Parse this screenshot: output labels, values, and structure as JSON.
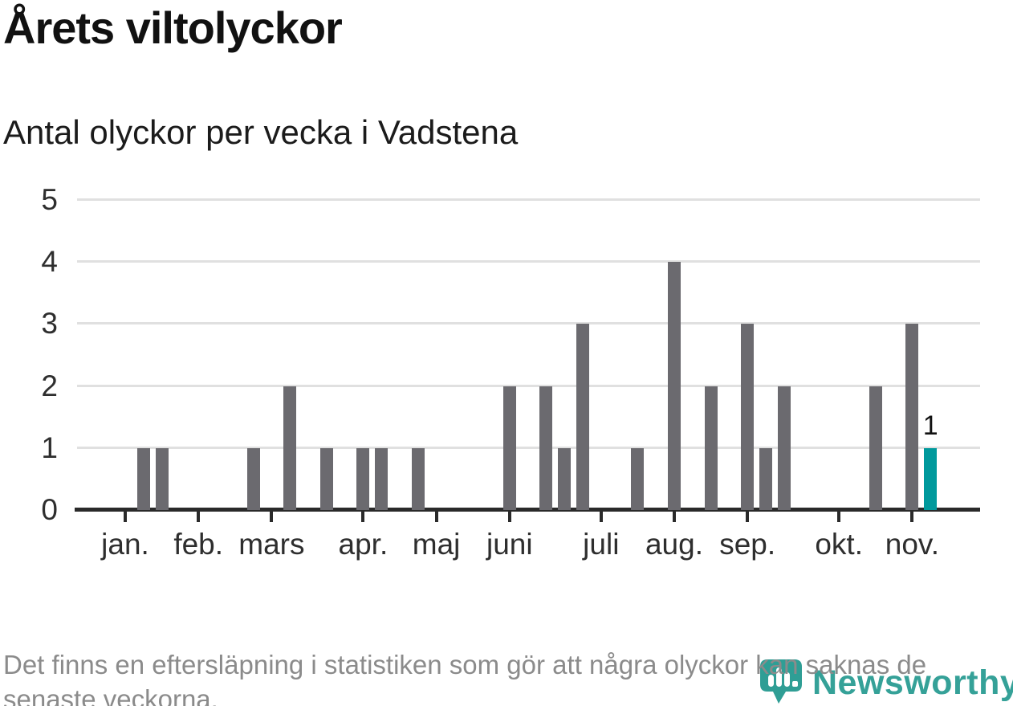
{
  "header": {
    "title": "Årets viltolyckor",
    "subtitle": "Antal olyckor per vecka i Vadstena"
  },
  "footer": {
    "lines": [
      "Det finns en eftersläpning i statistiken som gör att några olyckor kan saknas de",
      "senaste veckorna."
    ]
  },
  "logo": {
    "text": "Newsworthy"
  },
  "colors": {
    "bar": "#6b6a6f",
    "bar_highlight": "#00999c",
    "grid": "#e0e0e0",
    "axis": "#2a2a2a",
    "tick_label": "#2e2e2e",
    "footer_text": "#8b8b8b",
    "logo_teal": "#35a198",
    "title_text": "#111111"
  },
  "chart_data": {
    "type": "bar",
    "title": "Årets viltolyckor",
    "subtitle": "Antal olyckor per vecka i Vadstena",
    "x_unit": "vecka (week of year)",
    "weeks_domain": [
      1,
      47
    ],
    "ylim": [
      0,
      5
    ],
    "yticks": [
      0,
      1,
      2,
      3,
      4,
      5
    ],
    "grid": "horizontal",
    "legend": "none",
    "month_ticks": [
      {
        "week": 1,
        "label": "jan."
      },
      {
        "week": 5,
        "label": "feb."
      },
      {
        "week": 9,
        "label": "mars"
      },
      {
        "week": 14,
        "label": "apr."
      },
      {
        "week": 18,
        "label": "maj"
      },
      {
        "week": 22,
        "label": "juni"
      },
      {
        "week": 27,
        "label": "juli"
      },
      {
        "week": 31,
        "label": "aug."
      },
      {
        "week": 35,
        "label": "sep."
      },
      {
        "week": 40,
        "label": "okt."
      },
      {
        "week": 44,
        "label": "nov."
      }
    ],
    "values_by_week": [
      0,
      1,
      1,
      0,
      0,
      0,
      0,
      1,
      0,
      2,
      0,
      1,
      0,
      1,
      1,
      0,
      1,
      0,
      0,
      0,
      0,
      2,
      0,
      2,
      1,
      3,
      0,
      0,
      1,
      0,
      4,
      0,
      2,
      0,
      3,
      1,
      2,
      0,
      0,
      0,
      0,
      2,
      0,
      3,
      1,
      0,
      0
    ],
    "highlight_week": 45,
    "last_bar_label": "1"
  }
}
